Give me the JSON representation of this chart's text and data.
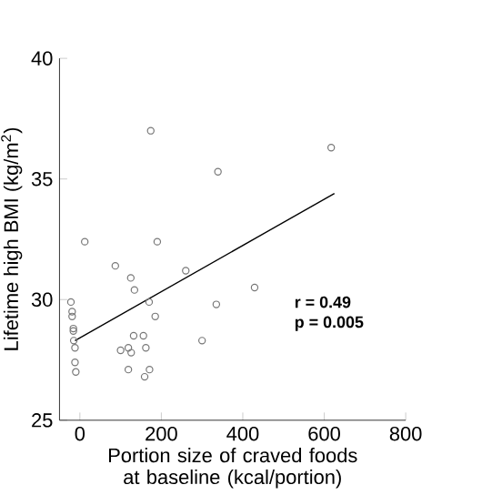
{
  "chart_data": {
    "type": "scatter",
    "xlabel": "Portion size of craved foods at baseline (kcal/portion)",
    "ylabel": "Lifetime high BMI (kg/m$^{2}$)",
    "xlim": [
      -50,
      800
    ],
    "xticks": [
      0,
      200,
      400,
      600,
      800
    ],
    "ylim": [
      25,
      40
    ],
    "yticks": [
      25,
      30,
      35,
      40
    ],
    "marker": "circle",
    "grid": false,
    "series": [
      {
        "color": "#777777",
        "x": [
          174,
          617,
          339,
          12,
          190,
          87,
          260,
          125,
          134,
          429,
          -22,
          -19,
          -19,
          170,
          335,
          185,
          -16,
          -16,
          -15,
          -12,
          -12,
          -10,
          132,
          156,
          100,
          119,
          126,
          162,
          300,
          119,
          171,
          159
        ],
        "values": [
          37.0,
          36.3,
          35.3,
          32.4,
          32.4,
          31.4,
          31.2,
          30.9,
          30.4,
          30.5,
          29.9,
          29.5,
          29.3,
          29.9,
          29.8,
          29.3,
          28.8,
          28.7,
          28.3,
          28.0,
          27.4,
          27.0,
          28.5,
          28.5,
          27.9,
          28.0,
          27.8,
          28.0,
          28.3,
          27.1,
          27.1,
          26.8
        ]
      },
      {
        "type": "line",
        "marker": "none",
        "color": "#000000",
        "x": [
          -12,
          625
        ],
        "values": [
          28.3,
          34.4
        ]
      }
    ],
    "annotations": [
      "r = 0.49",
      "p = 0.005"
    ]
  }
}
